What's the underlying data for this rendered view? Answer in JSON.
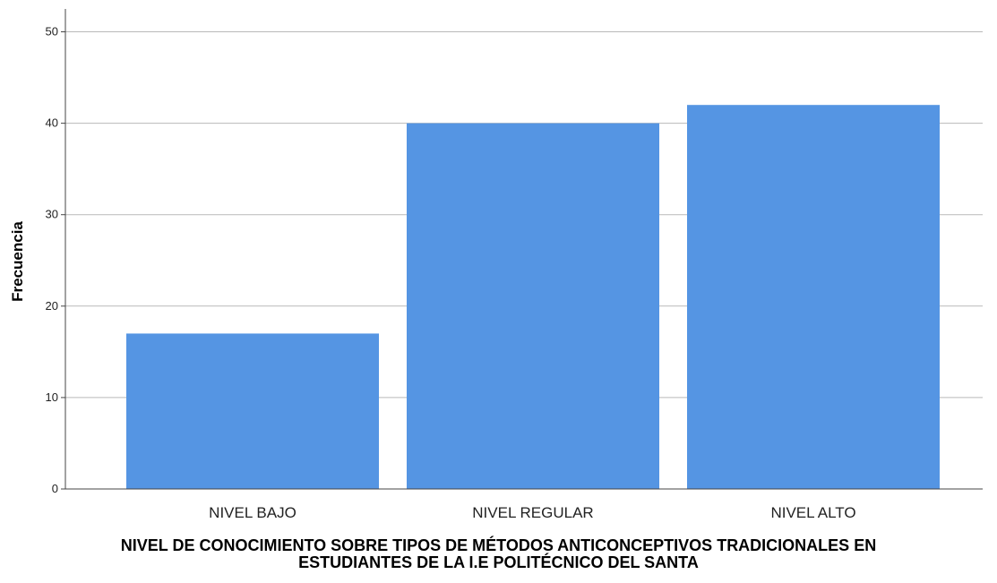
{
  "chart_data": {
    "type": "bar",
    "categories": [
      "NIVEL BAJO",
      "NIVEL REGULAR",
      "NIVEL ALTO"
    ],
    "values": [
      17,
      40,
      42
    ],
    "ylabel": "Frecuencia",
    "xlabel_lines": [
      "NIVEL DE CONOCIMIENTO SOBRE TIPOS DE MÉTODOS ANTICONCEPTIVOS TRADICIONALES EN",
      "ESTUDIANTES DE LA I.E POLITÉCNICO DEL SANTA"
    ],
    "yticks": [
      0,
      10,
      20,
      30,
      40,
      50
    ],
    "ylim": [
      0,
      52.5
    ],
    "grid": true,
    "bar_color": "#5595e3"
  }
}
